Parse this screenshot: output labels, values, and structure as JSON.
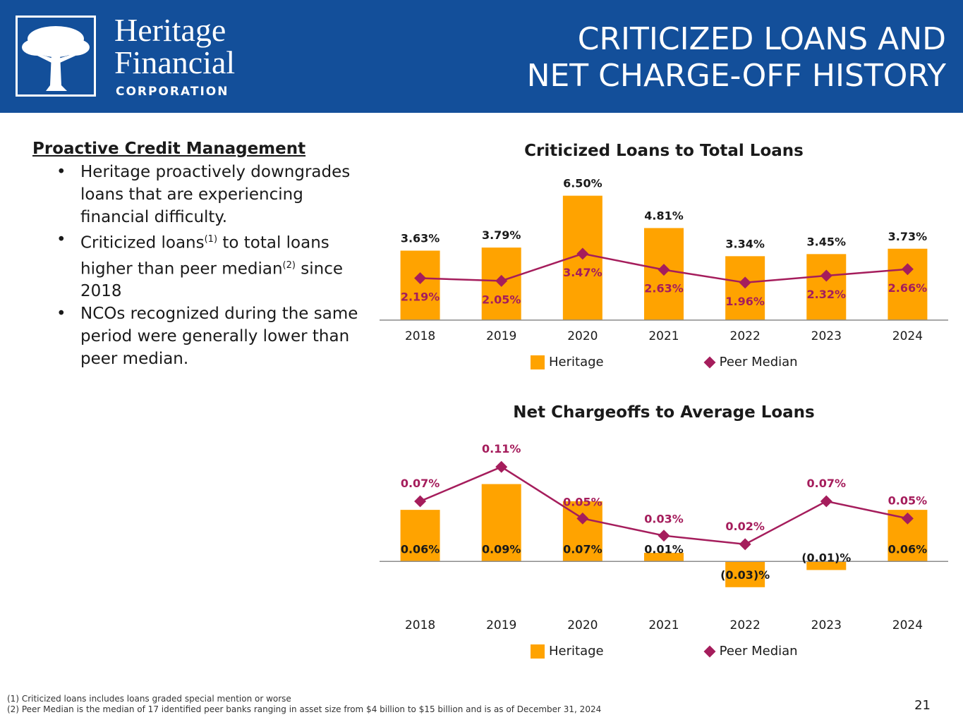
{
  "header": {
    "logo_line1": "Heritage",
    "logo_line2": "Financial",
    "logo_corp": "CORPORATION",
    "title_line1": "CRITICIZED LOANS AND",
    "title_line2": "NET CHARGE-OFF HISTORY",
    "icon": "tree-icon"
  },
  "left": {
    "heading": "Proactive Credit Management",
    "b1": "Heritage proactively downgrades loans that are experiencing financial difficulty.",
    "b2_a": "Criticized loans",
    "b2_sup1": "(1)",
    "b2_b": " to total loans higher than peer median",
    "b2_sup2": "(2)",
    "b2_c": " since 2018",
    "b3": "NCOs recognized during the same period were generally lower than peer median."
  },
  "colors": {
    "heritage": "#FFA300",
    "peer": "#A51D5C",
    "header": "#134F9A"
  },
  "chart_data": [
    {
      "type": "bar",
      "title": "Criticized Loans to Total Loans",
      "categories": [
        "2018",
        "2019",
        "2020",
        "2021",
        "2022",
        "2023",
        "2024"
      ],
      "series": [
        {
          "name": "Heritage",
          "type": "bar",
          "values": [
            3.63,
            3.79,
            6.5,
            4.81,
            3.34,
            3.45,
            3.73
          ],
          "labels": [
            "3.63%",
            "3.79%",
            "6.50%",
            "4.81%",
            "3.34%",
            "3.45%",
            "3.73%"
          ]
        },
        {
          "name": "Peer Median",
          "type": "line",
          "values": [
            2.19,
            2.05,
            3.47,
            2.63,
            1.96,
            2.32,
            2.66
          ],
          "labels": [
            "2.19%",
            "2.05%",
            "3.47%",
            "2.63%",
            "1.96%",
            "2.32%",
            "2.66%"
          ]
        }
      ],
      "ylim": [
        0,
        7
      ],
      "legend": "bottom"
    },
    {
      "type": "bar",
      "title": "Net Chargeoffs to Average Loans",
      "categories": [
        "2018",
        "2019",
        "2020",
        "2021",
        "2022",
        "2023",
        "2024"
      ],
      "series": [
        {
          "name": "Heritage",
          "type": "bar",
          "values": [
            0.06,
            0.09,
            0.07,
            0.01,
            -0.03,
            -0.01,
            0.06
          ],
          "labels": [
            "0.06%",
            "0.09%",
            "0.07%",
            "0.01%",
            "(0.03)%",
            "(0.01)%",
            "0.06%"
          ]
        },
        {
          "name": "Peer Median",
          "type": "line",
          "values": [
            0.07,
            0.11,
            0.05,
            0.03,
            0.02,
            0.07,
            0.05
          ],
          "labels": [
            "0.07%",
            "0.11%",
            "0.05%",
            "0.03%",
            "0.02%",
            "0.07%",
            "0.05%"
          ]
        }
      ],
      "ylim": [
        -0.04,
        0.12
      ],
      "legend": "bottom"
    }
  ],
  "footnotes": {
    "f1": "(1) Criticized loans includes loans graded special mention or worse",
    "f2": "(2) Peer Median is the median of 17 identified peer banks ranging in asset size from $4 billion to $15 billion and is as of December 31, 2024"
  },
  "page_number": "21"
}
